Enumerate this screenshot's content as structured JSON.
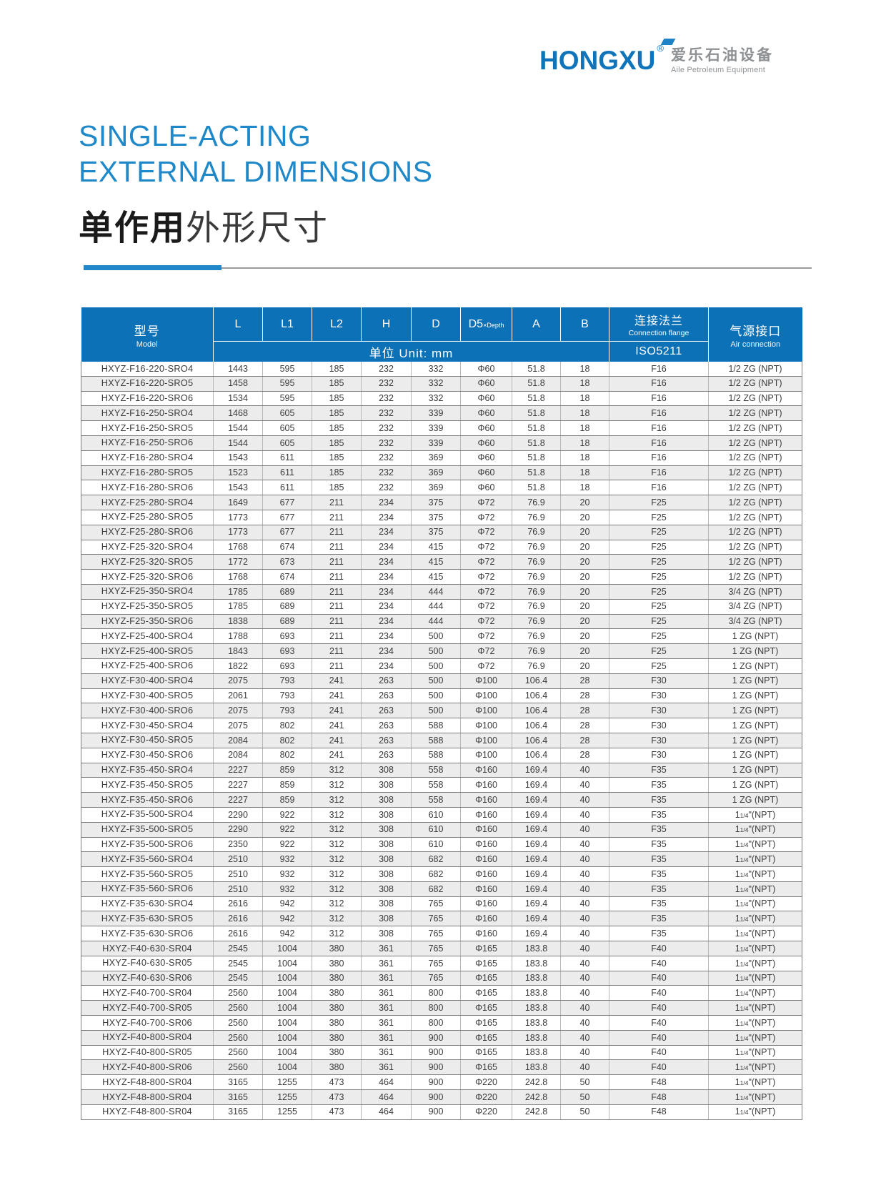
{
  "logo": {
    "brand": "HONGXU",
    "registered": "®",
    "cn": "爱乐石油设备",
    "en": "Aile Petroleum Equipment"
  },
  "title": {
    "en_line1": "SINGLE-ACTING",
    "en_line2": "EXTERNAL DIMENSIONS",
    "cn_bold": "单作用",
    "cn_regular": "外形尺寸"
  },
  "colors": {
    "header_blue": "#0d71b7",
    "title_blue": "#1e88c9",
    "logo_blue": "#0f74ba",
    "alt_row_gray": "#ececec"
  },
  "table": {
    "header": {
      "model_cn": "型号",
      "model_en": "Model",
      "col_l": "L",
      "col_l1": "L1",
      "col_l2": "L2",
      "col_h": "H",
      "col_d": "D",
      "col_d5_main": "D5",
      "col_d5_sub": "×Depth",
      "col_a": "A",
      "col_b": "B",
      "unit_label": "单位 Unit: mm",
      "flange_cn": "连接法兰",
      "flange_en": "Connection flange",
      "flange_std": "ISO5211",
      "air_cn": "气源接口",
      "air_en": "Air connection"
    },
    "column_keys": [
      "model",
      "l",
      "l1",
      "l2",
      "h",
      "d",
      "d5-depth",
      "a",
      "b",
      "flange",
      "air"
    ],
    "rows": [
      [
        "HXYZ-F16-220-SRO4",
        "1443",
        "595",
        "185",
        "232",
        "332",
        "Φ60",
        "51.8",
        "18",
        "F16",
        "1/2 ZG (NPT)"
      ],
      [
        "HXYZ-F16-220-SRO5",
        "1458",
        "595",
        "185",
        "232",
        "332",
        "Φ60",
        "51.8",
        "18",
        "F16",
        "1/2 ZG (NPT)"
      ],
      [
        "HXYZ-F16-220-SRO6",
        "1534",
        "595",
        "185",
        "232",
        "332",
        "Φ60",
        "51.8",
        "18",
        "F16",
        "1/2 ZG (NPT)"
      ],
      [
        "HXYZ-F16-250-SRO4",
        "1468",
        "605",
        "185",
        "232",
        "339",
        "Φ60",
        "51.8",
        "18",
        "F16",
        "1/2 ZG (NPT)"
      ],
      [
        "HXYZ-F16-250-SRO5",
        "1544",
        "605",
        "185",
        "232",
        "339",
        "Φ60",
        "51.8",
        "18",
        "F16",
        "1/2 ZG (NPT)"
      ],
      [
        "HXYZ-F16-250-SRO6",
        "1544",
        "605",
        "185",
        "232",
        "339",
        "Φ60",
        "51.8",
        "18",
        "F16",
        "1/2 ZG (NPT)"
      ],
      [
        "HXYZ-F16-280-SRO4",
        "1543",
        "611",
        "185",
        "232",
        "369",
        "Φ60",
        "51.8",
        "18",
        "F16",
        "1/2 ZG (NPT)"
      ],
      [
        "HXYZ-F16-280-SRO5",
        "1523",
        "611",
        "185",
        "232",
        "369",
        "Φ60",
        "51.8",
        "18",
        "F16",
        "1/2 ZG (NPT)"
      ],
      [
        "HXYZ-F16-280-SRO6",
        "1543",
        "611",
        "185",
        "232",
        "369",
        "Φ60",
        "51.8",
        "18",
        "F16",
        "1/2 ZG (NPT)"
      ],
      [
        "HXYZ-F25-280-SRO4",
        "1649",
        "677",
        "211",
        "234",
        "375",
        "Φ72",
        "76.9",
        "20",
        "F25",
        "1/2 ZG (NPT)"
      ],
      [
        "HXYZ-F25-280-SRO5",
        "1773",
        "677",
        "211",
        "234",
        "375",
        "Φ72",
        "76.9",
        "20",
        "F25",
        "1/2 ZG (NPT)"
      ],
      [
        "HXYZ-F25-280-SRO6",
        "1773",
        "677",
        "211",
        "234",
        "375",
        "Φ72",
        "76.9",
        "20",
        "F25",
        "1/2 ZG (NPT)"
      ],
      [
        "HXYZ-F25-320-SRO4",
        "1768",
        "674",
        "211",
        "234",
        "415",
        "Φ72",
        "76.9",
        "20",
        "F25",
        "1/2 ZG (NPT)"
      ],
      [
        "HXYZ-F25-320-SRO5",
        "1772",
        "673",
        "211",
        "234",
        "415",
        "Φ72",
        "76.9",
        "20",
        "F25",
        "1/2 ZG (NPT)"
      ],
      [
        "HXYZ-F25-320-SRO6",
        "1768",
        "674",
        "211",
        "234",
        "415",
        "Φ72",
        "76.9",
        "20",
        "F25",
        "1/2 ZG (NPT)"
      ],
      [
        "HXYZ-F25-350-SRO4",
        "1785",
        "689",
        "211",
        "234",
        "444",
        "Φ72",
        "76.9",
        "20",
        "F25",
        "3/4 ZG (NPT)"
      ],
      [
        "HXYZ-F25-350-SRO5",
        "1785",
        "689",
        "211",
        "234",
        "444",
        "Φ72",
        "76.9",
        "20",
        "F25",
        "3/4 ZG (NPT)"
      ],
      [
        "HXYZ-F25-350-SRO6",
        "1838",
        "689",
        "211",
        "234",
        "444",
        "Φ72",
        "76.9",
        "20",
        "F25",
        "3/4 ZG (NPT)"
      ],
      [
        "HXYZ-F25-400-SRO4",
        "1788",
        "693",
        "211",
        "234",
        "500",
        "Φ72",
        "76.9",
        "20",
        "F25",
        "1 ZG (NPT)"
      ],
      [
        "HXYZ-F25-400-SRO5",
        "1843",
        "693",
        "211",
        "234",
        "500",
        "Φ72",
        "76.9",
        "20",
        "F25",
        "1 ZG (NPT)"
      ],
      [
        "HXYZ-F25-400-SRO6",
        "1822",
        "693",
        "211",
        "234",
        "500",
        "Φ72",
        "76.9",
        "20",
        "F25",
        "1 ZG (NPT)"
      ],
      [
        "HXYZ-F30-400-SRO4",
        "2075",
        "793",
        "241",
        "263",
        "500",
        "Φ100",
        "106.4",
        "28",
        "F30",
        "1 ZG (NPT)"
      ],
      [
        "HXYZ-F30-400-SRO5",
        "2061",
        "793",
        "241",
        "263",
        "500",
        "Φ100",
        "106.4",
        "28",
        "F30",
        "1 ZG (NPT)"
      ],
      [
        "HXYZ-F30-400-SRO6",
        "2075",
        "793",
        "241",
        "263",
        "500",
        "Φ100",
        "106.4",
        "28",
        "F30",
        "1 ZG (NPT)"
      ],
      [
        "HXYZ-F30-450-SRO4",
        "2075",
        "802",
        "241",
        "263",
        "588",
        "Φ100",
        "106.4",
        "28",
        "F30",
        "1 ZG (NPT)"
      ],
      [
        "HXYZ-F30-450-SRO5",
        "2084",
        "802",
        "241",
        "263",
        "588",
        "Φ100",
        "106.4",
        "28",
        "F30",
        "1 ZG (NPT)"
      ],
      [
        "HXYZ-F30-450-SRO6",
        "2084",
        "802",
        "241",
        "263",
        "588",
        "Φ100",
        "106.4",
        "28",
        "F30",
        "1 ZG (NPT)"
      ],
      [
        "HXYZ-F35-450-SRO4",
        "2227",
        "859",
        "312",
        "308",
        "558",
        "Φ160",
        "169.4",
        "40",
        "F35",
        "1 ZG (NPT)"
      ],
      [
        "HXYZ-F35-450-SRO5",
        "2227",
        "859",
        "312",
        "308",
        "558",
        "Φ160",
        "169.4",
        "40",
        "F35",
        "1 ZG (NPT)"
      ],
      [
        "HXYZ-F35-450-SRO6",
        "2227",
        "859",
        "312",
        "308",
        "558",
        "Φ160",
        "169.4",
        "40",
        "F35",
        "1 ZG (NPT)"
      ],
      [
        "HXYZ-F35-500-SRO4",
        "2290",
        "922",
        "312",
        "308",
        "610",
        "Φ160",
        "169.4",
        "40",
        "F35",
        "1 1/4\"(NPT)"
      ],
      [
        "HXYZ-F35-500-SRO5",
        "2290",
        "922",
        "312",
        "308",
        "610",
        "Φ160",
        "169.4",
        "40",
        "F35",
        "1 1/4\"(NPT)"
      ],
      [
        "HXYZ-F35-500-SRO6",
        "2350",
        "922",
        "312",
        "308",
        "610",
        "Φ160",
        "169.4",
        "40",
        "F35",
        "1 1/4\"(NPT)"
      ],
      [
        "HXYZ-F35-560-SRO4",
        "2510",
        "932",
        "312",
        "308",
        "682",
        "Φ160",
        "169.4",
        "40",
        "F35",
        "1 1/4\"(NPT)"
      ],
      [
        "HXYZ-F35-560-SRO5",
        "2510",
        "932",
        "312",
        "308",
        "682",
        "Φ160",
        "169.4",
        "40",
        "F35",
        "1 1/4\"(NPT)"
      ],
      [
        "HXYZ-F35-560-SRO6",
        "2510",
        "932",
        "312",
        "308",
        "682",
        "Φ160",
        "169.4",
        "40",
        "F35",
        "1 1/4\"(NPT)"
      ],
      [
        "HXYZ-F35-630-SRO4",
        "2616",
        "942",
        "312",
        "308",
        "765",
        "Φ160",
        "169.4",
        "40",
        "F35",
        "1 1/4\"(NPT)"
      ],
      [
        "HXYZ-F35-630-SRO5",
        "2616",
        "942",
        "312",
        "308",
        "765",
        "Φ160",
        "169.4",
        "40",
        "F35",
        "1 1/4\"(NPT)"
      ],
      [
        "HXYZ-F35-630-SRO6",
        "2616",
        "942",
        "312",
        "308",
        "765",
        "Φ160",
        "169.4",
        "40",
        "F35",
        "1 1/4\"(NPT)"
      ],
      [
        "HXYZ-F40-630-SR04",
        "2545",
        "1004",
        "380",
        "361",
        "765",
        "Φ165",
        "183.8",
        "40",
        "F40",
        "1 1/4\"(NPT)"
      ],
      [
        "HXYZ-F40-630-SR05",
        "2545",
        "1004",
        "380",
        "361",
        "765",
        "Φ165",
        "183.8",
        "40",
        "F40",
        "1 1/4\"(NPT)"
      ],
      [
        "HXYZ-F40-630-SR06",
        "2545",
        "1004",
        "380",
        "361",
        "765",
        "Φ165",
        "183.8",
        "40",
        "F40",
        "1 1/4\"(NPT)"
      ],
      [
        "HXYZ-F40-700-SR04",
        "2560",
        "1004",
        "380",
        "361",
        "800",
        "Φ165",
        "183.8",
        "40",
        "F40",
        "1 1/4\"(NPT)"
      ],
      [
        "HXYZ-F40-700-SR05",
        "2560",
        "1004",
        "380",
        "361",
        "800",
        "Φ165",
        "183.8",
        "40",
        "F40",
        "1 1/4\"(NPT)"
      ],
      [
        "HXYZ-F40-700-SR06",
        "2560",
        "1004",
        "380",
        "361",
        "800",
        "Φ165",
        "183.8",
        "40",
        "F40",
        "1 1/4\"(NPT)"
      ],
      [
        "HXYZ-F40-800-SR04",
        "2560",
        "1004",
        "380",
        "361",
        "900",
        "Φ165",
        "183.8",
        "40",
        "F40",
        "1 1/4\"(NPT)"
      ],
      [
        "HXYZ-F40-800-SR05",
        "2560",
        "1004",
        "380",
        "361",
        "900",
        "Φ165",
        "183.8",
        "40",
        "F40",
        "1 1/4\"(NPT)"
      ],
      [
        "HXYZ-F40-800-SR06",
        "2560",
        "1004",
        "380",
        "361",
        "900",
        "Φ165",
        "183.8",
        "40",
        "F40",
        "1 1/4\"(NPT)"
      ],
      [
        "HXYZ-F48-800-SR04",
        "3165",
        "1255",
        "473",
        "464",
        "900",
        "Φ220",
        "242.8",
        "50",
        "F48",
        "1 1/4\"(NPT)"
      ],
      [
        "HXYZ-F48-800-SR04",
        "3165",
        "1255",
        "473",
        "464",
        "900",
        "Φ220",
        "242.8",
        "50",
        "F48",
        "1 1/4\"(NPT)"
      ],
      [
        "HXYZ-F48-800-SR04",
        "3165",
        "1255",
        "473",
        "464",
        "900",
        "Φ220",
        "242.8",
        "50",
        "F48",
        "1 1/4\"(NPT)"
      ]
    ]
  }
}
